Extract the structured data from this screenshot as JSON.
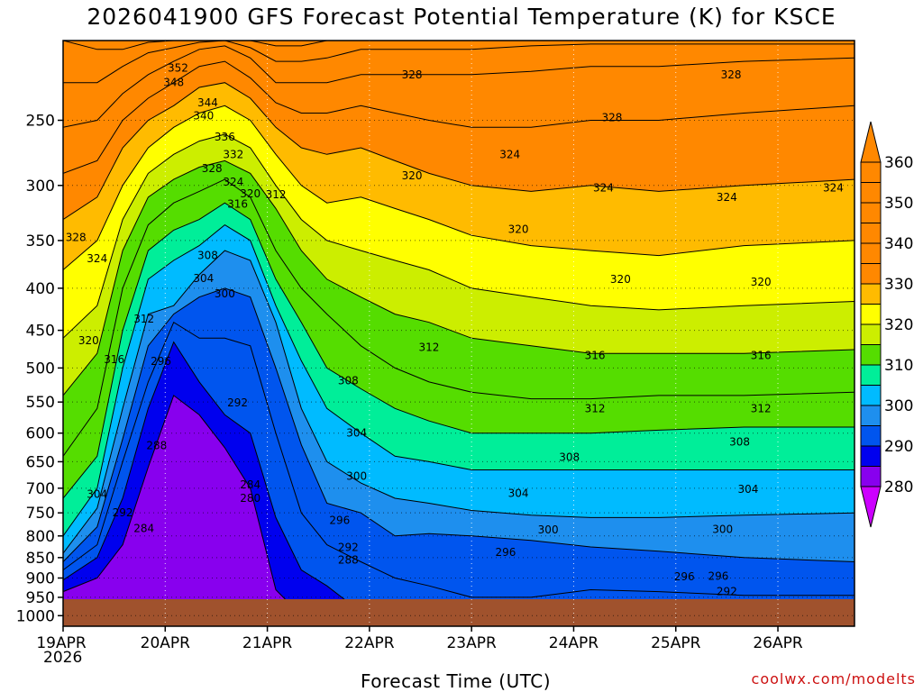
{
  "title": "2026041900 GFS Forecast Potential Temperature (K) for KSCE",
  "xlabel": "Forecast Time (UTC)",
  "credit": "coolwx.com/modelts",
  "year_label": "2026",
  "chart_data": {
    "type": "heatmap",
    "title": "2026041900 GFS Forecast Potential Temperature (K) for KSCE",
    "xlabel": "Forecast Time (UTC)",
    "ylabel": "",
    "x_ticks": [
      "19APR",
      "20APR",
      "21APR",
      "22APR",
      "23APR",
      "24APR",
      "25APR",
      "26APR"
    ],
    "x_tick_hours": [
      0,
      24,
      48,
      72,
      96,
      120,
      144,
      168
    ],
    "xlim": [
      0,
      186
    ],
    "y_ticks": [
      250,
      300,
      350,
      400,
      450,
      500,
      550,
      600,
      650,
      700,
      750,
      800,
      850,
      900,
      950,
      1000
    ],
    "ylim": [
      200,
      1030
    ],
    "y_scale": "log",
    "surface_pressure": 955,
    "colorbar": {
      "levels": [
        280,
        290,
        300,
        310,
        320,
        330,
        340,
        350,
        360
      ],
      "labels": [
        "280",
        "290",
        "300",
        "310",
        "320",
        "330",
        "340",
        "350",
        "360"
      ],
      "colors": [
        "#cc00ff",
        "#8800ee",
        "#0000ee",
        "#0055ee",
        "#1e8fee",
        "#00bbff",
        "#00ee99",
        "#55dd00",
        "#ccee00",
        "#ffff00",
        "#ffbb00",
        "#ff8800"
      ]
    },
    "contour_interval": 4,
    "isentrope_profiles": {
      "hours": [
        0,
        8,
        14,
        20,
        26,
        32,
        38,
        44,
        50,
        56,
        62,
        70,
        78,
        86,
        96,
        110,
        124,
        140,
        160,
        186
      ],
      "rows": [
        {
          "theta": 284,
          "p": [
            935,
            900,
            820,
            660,
            540,
            570,
            625,
            700,
            930,
            1000,
            1000,
            1000,
            1000,
            1000,
            1000,
            1000,
            1000,
            1000,
            1000,
            1000
          ]
        },
        {
          "theta": 288,
          "p": [
            905,
            850,
            720,
            560,
            465,
            520,
            570,
            600,
            760,
            880,
            920,
            990,
            1000,
            1000,
            1000,
            1000,
            1000,
            1000,
            1000,
            1000
          ]
        },
        {
          "theta": 292,
          "p": [
            880,
            820,
            650,
            520,
            440,
            460,
            460,
            470,
            600,
            750,
            820,
            860,
            900,
            920,
            950,
            950,
            930,
            935,
            945,
            945
          ]
        },
        {
          "theta": 296,
          "p": [
            860,
            780,
            610,
            470,
            430,
            410,
            400,
            410,
            500,
            620,
            730,
            750,
            800,
            795,
            800,
            810,
            825,
            835,
            850,
            860
          ]
        },
        {
          "theta": 300,
          "p": [
            840,
            740,
            560,
            430,
            420,
            385,
            360,
            370,
            440,
            560,
            650,
            690,
            720,
            730,
            745,
            755,
            760,
            760,
            755,
            750
          ]
        },
        {
          "theta": 304,
          "p": [
            800,
            700,
            500,
            390,
            370,
            355,
            335,
            350,
            420,
            490,
            560,
            600,
            640,
            650,
            665,
            665,
            665,
            665,
            665,
            665
          ]
        },
        {
          "theta": 308,
          "p": [
            720,
            640,
            450,
            360,
            340,
            330,
            315,
            330,
            390,
            440,
            500,
            530,
            560,
            580,
            600,
            600,
            600,
            595,
            590,
            590
          ]
        },
        {
          "theta": 312,
          "p": [
            640,
            560,
            400,
            335,
            315,
            305,
            295,
            310,
            360,
            400,
            430,
            470,
            500,
            520,
            535,
            545,
            545,
            540,
            540,
            535
          ]
        },
        {
          "theta": 316,
          "p": [
            540,
            480,
            360,
            310,
            295,
            285,
            280,
            290,
            320,
            360,
            390,
            410,
            430,
            440,
            460,
            470,
            480,
            480,
            480,
            475
          ]
        },
        {
          "theta": 320,
          "p": [
            460,
            420,
            330,
            290,
            275,
            265,
            260,
            270,
            300,
            330,
            350,
            360,
            370,
            380,
            400,
            410,
            420,
            425,
            420,
            415
          ]
        },
        {
          "theta": 324,
          "p": [
            380,
            350,
            300,
            270,
            255,
            245,
            240,
            250,
            275,
            300,
            315,
            310,
            320,
            330,
            345,
            355,
            360,
            365,
            355,
            350
          ]
        },
        {
          "theta": 328,
          "p": [
            330,
            310,
            270,
            250,
            240,
            228,
            225,
            235,
            255,
            270,
            275,
            270,
            280,
            290,
            300,
            305,
            300,
            305,
            300,
            295
          ]
        },
        {
          "theta": 332,
          "p": [
            290,
            280,
            250,
            235,
            225,
            215,
            212,
            222,
            238,
            245,
            245,
            240,
            245,
            250,
            255,
            255,
            250,
            250,
            245,
            240
          ]
        },
        {
          "theta": 336,
          "p": [
            255,
            250,
            232,
            220,
            212,
            205,
            203,
            210,
            225,
            225,
            225,
            220,
            220,
            220,
            220,
            218,
            215,
            215,
            212,
            210
          ]
        },
        {
          "theta": 340,
          "p": [
            225,
            225,
            215,
            207,
            204,
            201,
            200,
            204,
            212,
            212,
            210,
            205,
            205,
            205,
            205,
            203,
            202,
            202,
            202,
            202
          ]
        },
        {
          "theta": 344,
          "p": [
            200,
            205,
            205,
            201,
            200,
            200,
            200,
            200,
            203,
            203,
            200,
            200,
            200,
            200,
            200,
            200,
            200,
            200,
            200,
            200
          ]
        }
      ]
    },
    "contour_labels": [
      {
        "text": "352",
        "hour": 27,
        "p": 216
      },
      {
        "text": "348",
        "hour": 26,
        "p": 225
      },
      {
        "text": "344",
        "hour": 34,
        "p": 238
      },
      {
        "text": "340",
        "hour": 33,
        "p": 247
      },
      {
        "text": "336",
        "hour": 38,
        "p": 262
      },
      {
        "text": "332",
        "hour": 40,
        "p": 275
      },
      {
        "text": "328",
        "hour": 35,
        "p": 286
      },
      {
        "text": "324",
        "hour": 40,
        "p": 297
      },
      {
        "text": "320",
        "hour": 44,
        "p": 307
      },
      {
        "text": "316",
        "hour": 41,
        "p": 316
      },
      {
        "text": "312",
        "hour": 50,
        "p": 308
      },
      {
        "text": "308",
        "hour": 34,
        "p": 365
      },
      {
        "text": "304",
        "hour": 33,
        "p": 389
      },
      {
        "text": "300",
        "hour": 38,
        "p": 406
      },
      {
        "text": "312",
        "hour": 19,
        "p": 436
      },
      {
        "text": "296",
        "hour": 23,
        "p": 491
      },
      {
        "text": "292",
        "hour": 41,
        "p": 551
      },
      {
        "text": "288",
        "hour": 22,
        "p": 621
      },
      {
        "text": "284",
        "hour": 44,
        "p": 693
      },
      {
        "text": "280",
        "hour": 44,
        "p": 720
      },
      {
        "text": "304",
        "hour": 8,
        "p": 712
      },
      {
        "text": "292",
        "hour": 14,
        "p": 750
      },
      {
        "text": "284",
        "hour": 19,
        "p": 783
      },
      {
        "text": "328",
        "hour": 3,
        "p": 347
      },
      {
        "text": "324",
        "hour": 8,
        "p": 368
      },
      {
        "text": "320",
        "hour": 6,
        "p": 463
      },
      {
        "text": "316",
        "hour": 12,
        "p": 488
      },
      {
        "text": "328",
        "hour": 82,
        "p": 220
      },
      {
        "text": "320",
        "hour": 82,
        "p": 292
      },
      {
        "text": "324",
        "hour": 105,
        "p": 275
      },
      {
        "text": "320",
        "hour": 107,
        "p": 339
      },
      {
        "text": "312",
        "hour": 86,
        "p": 472
      },
      {
        "text": "308",
        "hour": 67,
        "p": 518
      },
      {
        "text": "304",
        "hour": 69,
        "p": 600
      },
      {
        "text": "300",
        "hour": 69,
        "p": 677
      },
      {
        "text": "296",
        "hour": 65,
        "p": 766
      },
      {
        "text": "292",
        "hour": 67,
        "p": 826
      },
      {
        "text": "288",
        "hour": 67,
        "p": 856
      },
      {
        "text": "328",
        "hour": 129,
        "p": 248
      },
      {
        "text": "324",
        "hour": 127,
        "p": 302
      },
      {
        "text": "320",
        "hour": 131,
        "p": 390
      },
      {
        "text": "316",
        "hour": 125,
        "p": 483
      },
      {
        "text": "312",
        "hour": 125,
        "p": 560
      },
      {
        "text": "308",
        "hour": 119,
        "p": 642
      },
      {
        "text": "304",
        "hour": 107,
        "p": 710
      },
      {
        "text": "300",
        "hour": 114,
        "p": 786
      },
      {
        "text": "296",
        "hour": 104,
        "p": 838
      },
      {
        "text": "328",
        "hour": 157,
        "p": 220
      },
      {
        "text": "324",
        "hour": 156,
        "p": 310
      },
      {
        "text": "324",
        "hour": 181,
        "p": 302
      },
      {
        "text": "320",
        "hour": 164,
        "p": 393
      },
      {
        "text": "316",
        "hour": 164,
        "p": 483
      },
      {
        "text": "312",
        "hour": 164,
        "p": 560
      },
      {
        "text": "308",
        "hour": 159,
        "p": 615
      },
      {
        "text": "304",
        "hour": 161,
        "p": 702
      },
      {
        "text": "300",
        "hour": 155,
        "p": 785
      },
      {
        "text": "296",
        "hour": 154,
        "p": 895
      },
      {
        "text": "296",
        "hour": 146,
        "p": 897
      },
      {
        "text": "292",
        "hour": 156,
        "p": 935
      }
    ]
  }
}
